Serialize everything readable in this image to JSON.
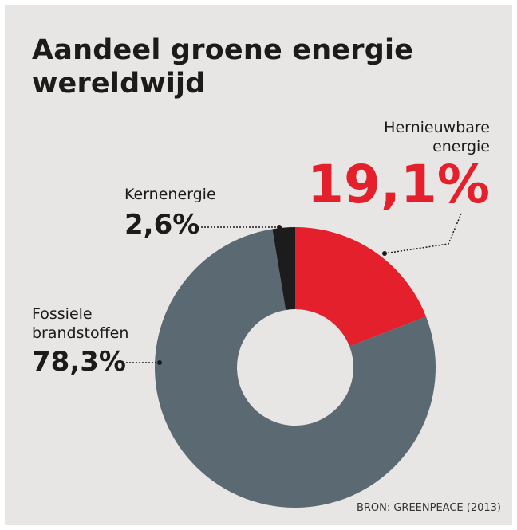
{
  "chart_data": {
    "type": "donut",
    "title": "Aandeel groene energie wereldwijd",
    "categories": [
      "Hernieuwbare energie",
      "Fossiele brandstoffen",
      "Kernenergie"
    ],
    "values": [
      19.1,
      78.3,
      2.6
    ],
    "value_labels": [
      "19,1%",
      "78,3%",
      "2,6%"
    ],
    "colors": [
      "#e3202b",
      "#5b6a72",
      "#1c1c1c"
    ],
    "source": "BRON: GREENPEACE (2013)"
  }
}
